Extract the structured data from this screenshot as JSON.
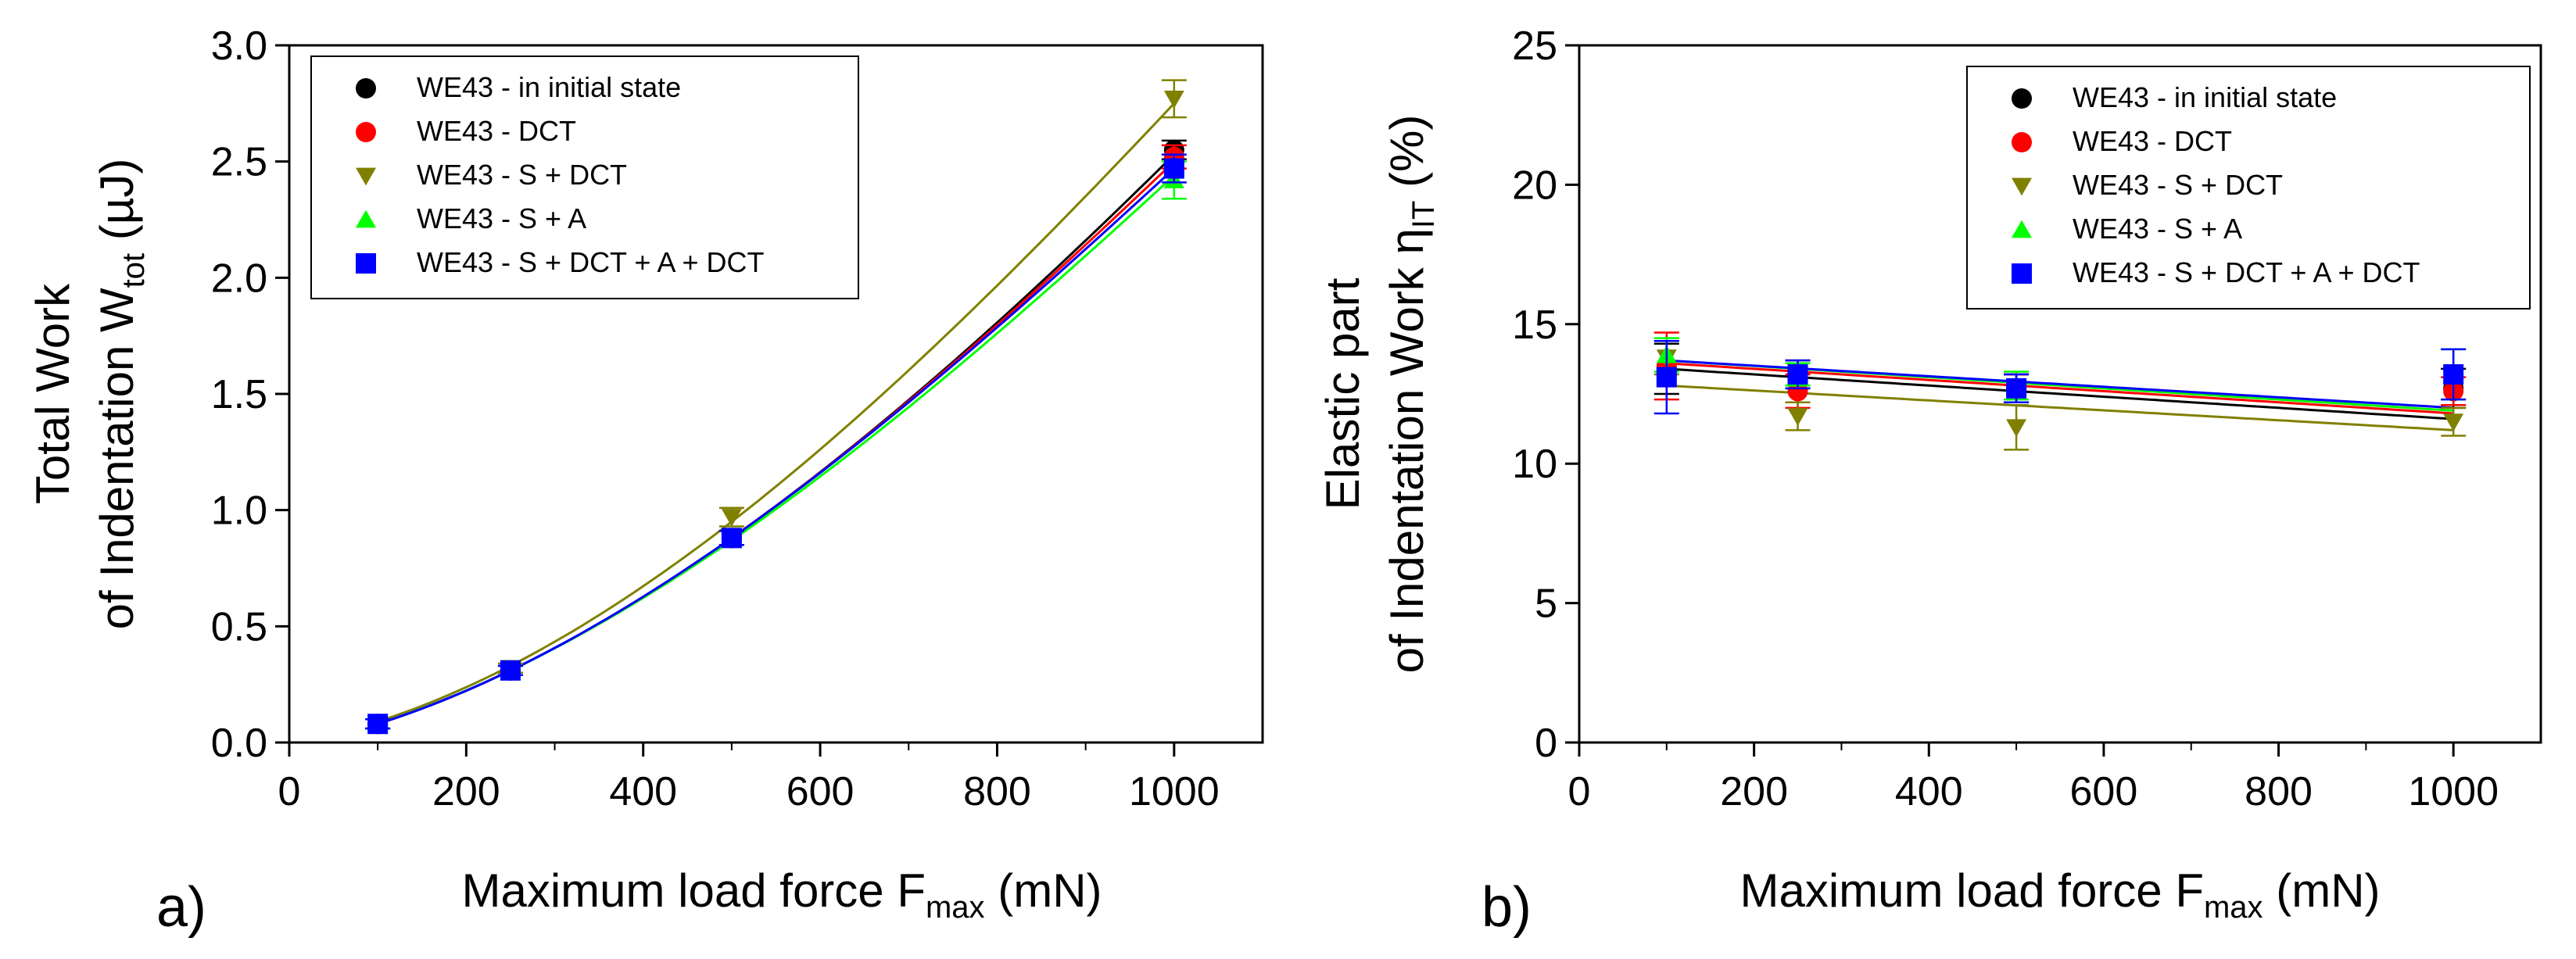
{
  "colors": {
    "initial": "#000000",
    "dct": "#ff0000",
    "s_dct": "#808000",
    "s_a": "#00ff00",
    "s_dct_a_dct": "#0000ff"
  },
  "chart_data": [
    {
      "type": "scatter",
      "panel_label": "a)",
      "xlabel": {
        "main": "Maximum load force F",
        "sub": "max",
        "unit": " (mN)"
      },
      "ylabel": {
        "line1": "Total Work",
        "line2": "of Indentation W",
        "sub": "tot",
        "unit": " (µJ)"
      },
      "xlim": [
        0,
        1100
      ],
      "ylim": [
        0,
        3.0
      ],
      "xticks": [
        0,
        200,
        400,
        600,
        800,
        1000
      ],
      "yticks": [
        0.0,
        0.5,
        1.0,
        1.5,
        2.0,
        2.5,
        3.0
      ],
      "ytick_labels": [
        "0.0",
        "0.5",
        "1.0",
        "1.5",
        "2.0",
        "2.5",
        "3.0"
      ],
      "grid": false,
      "legend_position": "top-left",
      "x": [
        100,
        250,
        500,
        1000
      ],
      "series": [
        {
          "name": "WE43 - in initial state",
          "marker": "circle",
          "color_key": "initial",
          "values": [
            0.08,
            0.31,
            0.88,
            2.55
          ],
          "errors": [
            0.02,
            0.02,
            0.03,
            0.04
          ],
          "fit": [
            0.08,
            0.31,
            0.88,
            2.53
          ]
        },
        {
          "name": "WE43 - DCT",
          "marker": "circle",
          "color_key": "dct",
          "values": [
            0.08,
            0.31,
            0.88,
            2.52
          ],
          "errors": [
            0.02,
            0.02,
            0.03,
            0.05
          ],
          "fit": [
            0.08,
            0.31,
            0.88,
            2.5
          ]
        },
        {
          "name": "WE43 - S + DCT",
          "marker": "triangle-down",
          "color_key": "s_dct",
          "values": [
            0.08,
            0.32,
            0.97,
            2.77
          ],
          "errors": [
            0.02,
            0.02,
            0.04,
            0.08
          ],
          "fit": [
            0.09,
            0.33,
            0.95,
            2.75
          ]
        },
        {
          "name": "WE43 - S + A",
          "marker": "triangle-up",
          "color_key": "s_a",
          "values": [
            0.08,
            0.31,
            0.88,
            2.42
          ],
          "errors": [
            0.02,
            0.02,
            0.03,
            0.08
          ],
          "fit": [
            0.08,
            0.31,
            0.87,
            2.44
          ]
        },
        {
          "name": "WE43 - S + DCT + A + DCT",
          "marker": "square",
          "color_key": "s_dct_a_dct",
          "values": [
            0.08,
            0.31,
            0.88,
            2.47
          ],
          "errors": [
            0.02,
            0.02,
            0.03,
            0.06
          ],
          "fit": [
            0.08,
            0.31,
            0.88,
            2.47
          ]
        }
      ]
    },
    {
      "type": "scatter",
      "panel_label": "b)",
      "xlabel": {
        "main": "Maximum load force F",
        "sub": "max",
        "unit": " (mN)"
      },
      "ylabel": {
        "line1": "Elastic part",
        "line2": "of Indentation Work η",
        "sub": "IT",
        "unit": " (%)"
      },
      "xlim": [
        0,
        1100
      ],
      "ylim": [
        0,
        25
      ],
      "xticks": [
        0,
        200,
        400,
        600,
        800,
        1000
      ],
      "yticks": [
        0,
        5,
        10,
        15,
        20,
        25
      ],
      "ytick_labels": [
        "0",
        "5",
        "10",
        "15",
        "20",
        "25"
      ],
      "grid": false,
      "legend_position": "top-right",
      "x": [
        100,
        250,
        500,
        1000
      ],
      "series": [
        {
          "name": "WE43 - in initial state",
          "marker": "circle",
          "color_key": "initial",
          "values": [
            13.4,
            13.2,
            12.7,
            12.7
          ],
          "errors": [
            0.9,
            0.5,
            0.5,
            0.7
          ],
          "fit": [
            13.4,
            13.1,
            12.7,
            11.6
          ]
        },
        {
          "name": "WE43 - DCT",
          "marker": "circle",
          "color_key": "dct",
          "values": [
            13.5,
            12.6,
            12.7,
            12.6
          ],
          "errors": [
            1.2,
            0.6,
            0.5,
            0.5
          ],
          "fit": [
            13.6,
            13.3,
            12.9,
            11.8
          ]
        },
        {
          "name": "WE43 - S + DCT",
          "marker": "triangle-down",
          "color_key": "s_dct",
          "values": [
            13.8,
            11.7,
            11.3,
            11.5
          ],
          "errors": [
            0.6,
            0.5,
            0.8,
            0.5
          ],
          "fit": [
            12.8,
            12.6,
            12.1,
            11.2
          ]
        },
        {
          "name": "WE43 - S + A",
          "marker": "triangle-up",
          "color_key": "s_a",
          "values": [
            13.9,
            13.2,
            12.8,
            13.2
          ],
          "errors": [
            0.6,
            0.4,
            0.5,
            0.9
          ],
          "fit": [
            13.7,
            13.4,
            13.0,
            11.9
          ]
        },
        {
          "name": "WE43 - S + DCT + A + DCT",
          "marker": "square",
          "color_key": "s_dct_a_dct",
          "values": [
            13.1,
            13.2,
            12.7,
            13.2
          ],
          "errors": [
            1.3,
            0.5,
            0.5,
            0.9
          ],
          "fit": [
            13.7,
            13.5,
            13.1,
            12.0
          ]
        }
      ]
    }
  ]
}
